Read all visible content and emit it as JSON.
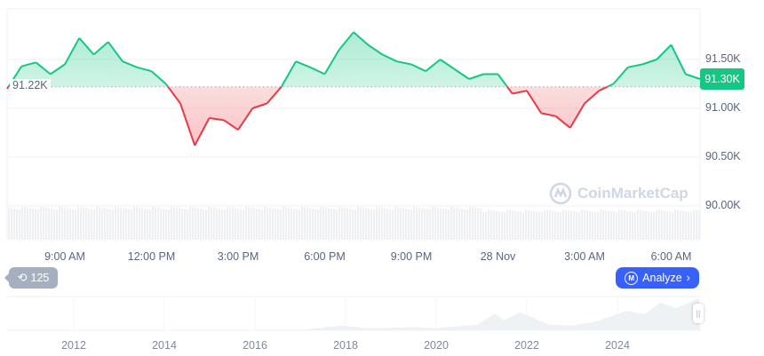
{
  "chart_data": {
    "type": "area",
    "baseline": 91.22,
    "baseline_label": "91.22K",
    "current_price_label": "91.30K",
    "ylim": [
      89.8,
      91.9
    ],
    "y_ticks": [
      "91.50K",
      "91.00K",
      "90.50K",
      "90.00K"
    ],
    "y_tick_values": [
      91.5,
      91.0,
      90.5,
      90.0
    ],
    "x_ticks": [
      "9:00 AM",
      "12:00 PM",
      "3:00 PM",
      "6:00 PM",
      "9:00 PM",
      "28 Nov",
      "3:00 AM",
      "6:00 AM"
    ],
    "x_tick_hours": [
      9,
      12,
      15,
      18,
      21,
      24,
      27,
      30
    ],
    "x_hours": [
      7,
      7.5,
      8,
      8.5,
      9,
      9.5,
      10,
      10.5,
      11,
      11.5,
      12,
      12.5,
      13,
      13.5,
      14,
      14.5,
      15,
      15.5,
      16,
      16.5,
      17,
      17.5,
      18,
      18.5,
      19,
      19.5,
      20,
      20.5,
      21,
      21.5,
      22,
      22.5,
      23,
      23.5,
      24,
      24.5,
      25,
      25.5,
      26,
      26.5,
      27,
      27.5,
      28,
      28.5,
      29,
      29.5,
      30,
      30.5,
      31
    ],
    "values": [
      91.2,
      91.43,
      91.47,
      91.35,
      91.45,
      91.72,
      91.55,
      91.68,
      91.48,
      91.42,
      91.38,
      91.25,
      91.05,
      90.62,
      90.9,
      90.88,
      90.78,
      91.0,
      91.05,
      91.22,
      91.48,
      91.42,
      91.35,
      91.6,
      91.78,
      91.65,
      91.55,
      91.48,
      91.45,
      91.38,
      91.5,
      91.4,
      91.3,
      91.35,
      91.35,
      91.15,
      91.18,
      90.95,
      90.92,
      90.8,
      91.05,
      91.18,
      91.25,
      91.42,
      91.45,
      91.5,
      91.65,
      91.35,
      91.3
    ],
    "unit": "K",
    "colors": {
      "up": "#16c784",
      "down": "#ea3943",
      "volume": "#eef0f3",
      "navigator": "#eff2f5"
    },
    "navigator": {
      "year_ticks": [
        "2012",
        "2014",
        "2016",
        "2018",
        "2020",
        "2022",
        "2024"
      ],
      "years": [
        2011,
        2017.0,
        2017.9,
        2018.5,
        2019.5,
        2020.0,
        2020.9,
        2021.3,
        2021.5,
        2021.85,
        2022.5,
        2023.0,
        2023.5,
        2024.2,
        2024.6,
        2024.95,
        2025.3,
        2025.8
      ],
      "values": [
        0,
        1,
        17,
        7,
        11,
        8,
        20,
        60,
        35,
        65,
        20,
        17,
        30,
        70,
        58,
        100,
        80,
        115
      ]
    }
  },
  "watermark": "CoinMarketCap",
  "history_badge": {
    "count": "125",
    "icon": "history-icon"
  },
  "analyze_button": {
    "label": "Analyze",
    "icon": "cmc-logo-icon"
  }
}
